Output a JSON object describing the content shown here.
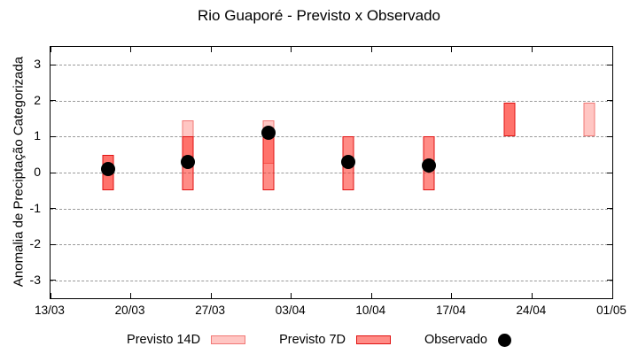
{
  "chart_data": {
    "type": "bar",
    "title": "Rio Guaporé - Previsto x Observado",
    "ylabel": "Anomalia de Preciptação Categorizada",
    "xlabel": "",
    "ylim": [
      -3.5,
      3.5
    ],
    "y_ticks": [
      3,
      2,
      1,
      0,
      -1,
      -2,
      -3
    ],
    "x_tick_labels": [
      "13/03",
      "20/03",
      "27/03",
      "03/04",
      "10/04",
      "17/04",
      "24/04",
      "01/05"
    ],
    "x_tick_days": [
      0,
      7,
      14,
      21,
      28,
      35,
      42,
      49
    ],
    "x_range_days": 49,
    "grid": "horizontal dashed",
    "legend_position": "bottom",
    "series": [
      {
        "name": "Previsto 14D",
        "type": "range-bar",
        "appearance": "light pink box"
      },
      {
        "name": "Previsto 7D",
        "type": "range-bar",
        "appearance": "red box"
      },
      {
        "name": "Observado",
        "type": "scatter",
        "appearance": "black filled circle"
      }
    ],
    "bars": [
      {
        "date": "18/03",
        "day": 5,
        "previsto_14d": [
          -0.5,
          0.5
        ],
        "previsto_7d": [
          -0.5,
          0.5
        ],
        "observado": 0.1
      },
      {
        "date": "25/03",
        "day": 12,
        "previsto_14d": [
          0.45,
          1.45
        ],
        "previsto_7d": [
          -0.5,
          1.0
        ],
        "observado": 0.3
      },
      {
        "date": "01/04",
        "day": 19,
        "previsto_14d": [
          0.25,
          1.45
        ],
        "previsto_7d": [
          -0.5,
          1.0
        ],
        "observado": 1.1
      },
      {
        "date": "08/04",
        "day": 26,
        "previsto_14d": null,
        "previsto_7d": [
          -0.5,
          1.0
        ],
        "observado": 0.3
      },
      {
        "date": "15/04",
        "day": 33,
        "previsto_14d": null,
        "previsto_7d": [
          -0.5,
          1.0
        ],
        "observado": 0.2
      },
      {
        "date": "22/04",
        "day": 40,
        "previsto_14d": [
          1.0,
          1.95
        ],
        "previsto_7d": [
          1.0,
          1.95
        ],
        "observado": null
      },
      {
        "date": "29/04",
        "day": 47,
        "previsto_14d": [
          1.0,
          1.95
        ],
        "previsto_7d": null,
        "observado": null
      }
    ],
    "colors": {
      "previsto_14d_fill": "rgba(255,45,35,0.27)",
      "previsto_14d_border": "rgba(222,12,12,0.42)",
      "previsto_7d_fill": "rgba(255,45,35,0.55)",
      "previsto_7d_border": "#e01212",
      "observado": "#000000",
      "grid": "#999999",
      "axis": "#000000"
    }
  },
  "legend": {
    "previsto_14d": "Previsto 14D",
    "previsto_7d": "Previsto 7D",
    "observado": "Observado"
  }
}
